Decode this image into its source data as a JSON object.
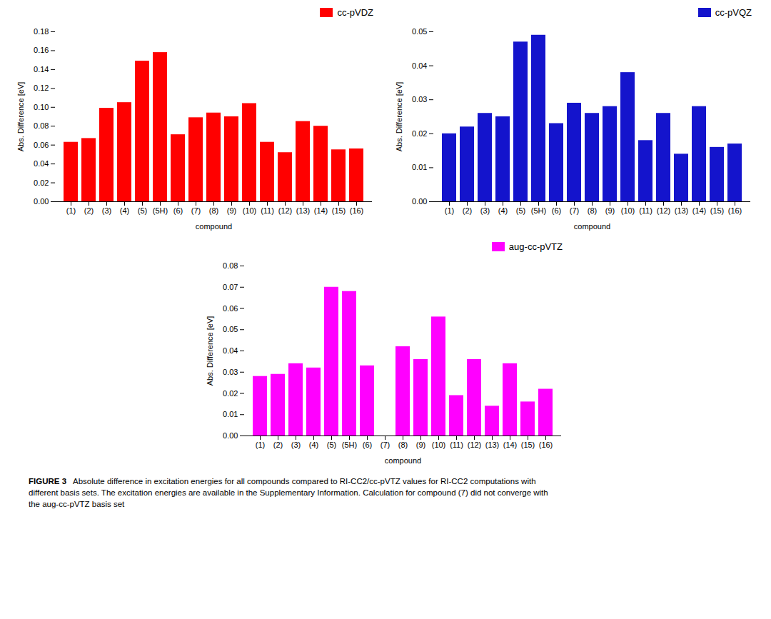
{
  "chart_data": [
    {
      "type": "bar",
      "categories": [
        "(1)",
        "(2)",
        "(3)",
        "(4)",
        "(5)",
        "(5H)",
        "(6)",
        "(7)",
        "(8)",
        "(9)",
        "(10)",
        "(11)",
        "(12)",
        "(13)",
        "(14)",
        "(15)",
        "(16)"
      ],
      "series": [
        {
          "name": "cc-pVDZ",
          "color": "#FF0000",
          "values": [
            0.063,
            0.067,
            0.099,
            0.105,
            0.149,
            0.158,
            0.071,
            0.089,
            0.094,
            0.09,
            0.104,
            0.063,
            0.052,
            0.085,
            0.08,
            0.055,
            0.056
          ]
        }
      ],
      "x_label": "compound",
      "y_label": "Abs. Difference [eV]",
      "ylim": [
        0.0,
        0.18
      ],
      "yticks": [
        {
          "value": 0.0,
          "label": "0.00"
        },
        0.02,
        0.04,
        0.06,
        0.08,
        {
          "value": 0.1,
          "label": "0.10"
        },
        0.12,
        0.14,
        0.16,
        0.18
      ],
      "grid": false,
      "legend": "upper right"
    },
    {
      "type": "bar",
      "categories": [
        "(1)",
        "(2)",
        "(3)",
        "(4)",
        "(5)",
        "(5H)",
        "(6)",
        "(7)",
        "(8)",
        "(9)",
        "(10)",
        "(11)",
        "(12)",
        "(13)",
        "(14)",
        "(15)",
        "(16)"
      ],
      "series": [
        {
          "name": "cc-pVQZ",
          "color": "#1414CC",
          "values": [
            0.02,
            0.022,
            0.026,
            0.025,
            0.047,
            0.049,
            0.023,
            0.029,
            0.026,
            0.028,
            0.038,
            0.018,
            0.026,
            0.014,
            0.028,
            0.016,
            0.017
          ]
        }
      ],
      "x_label": "compound",
      "y_label": "Abs. Difference [eV]",
      "ylim": [
        0.0,
        0.05
      ],
      "yticks": [
        {
          "value": 0.0,
          "label": "0.00"
        },
        0.01,
        0.02,
        0.03,
        0.04,
        0.05
      ],
      "grid": false,
      "legend": "upper right"
    },
    {
      "type": "bar",
      "categories": [
        "(1)",
        "(2)",
        "(3)",
        "(4)",
        "(5)",
        "(5H)",
        "(6)",
        "(7)",
        "(8)",
        "(9)",
        "(10)",
        "(11)",
        "(12)",
        "(13)",
        "(14)",
        "(15)",
        "(16)"
      ],
      "series": [
        {
          "name": "aug-cc-pVTZ",
          "color": "#FF00FF",
          "values": [
            0.028,
            0.029,
            0.034,
            0.032,
            0.07,
            0.068,
            0.033,
            0.0,
            0.042,
            0.036,
            0.056,
            0.019,
            0.036,
            0.014,
            0.034,
            0.016,
            0.022
          ]
        }
      ],
      "x_label": "compound",
      "y_label": "Abs. Difference [eV]",
      "ylim": [
        0.0,
        0.08
      ],
      "yticks": [
        {
          "value": 0.0,
          "label": "0.00"
        },
        0.01,
        0.02,
        0.03,
        0.04,
        0.05,
        0.06,
        0.07,
        0.08
      ],
      "grid": false,
      "legend": "upper right"
    }
  ],
  "caption_title": "FIGURE 3",
  "caption": "   Absolute difference in excitation energies for all compounds compared to RI-CC2/cc-pVTZ values for RI-CC2 computations with\ndifferent basis sets. The excitation energies are available in the Supplementary Information. Calculation for compound (7) did not converge with\nthe aug-cc-pVTZ basis set"
}
